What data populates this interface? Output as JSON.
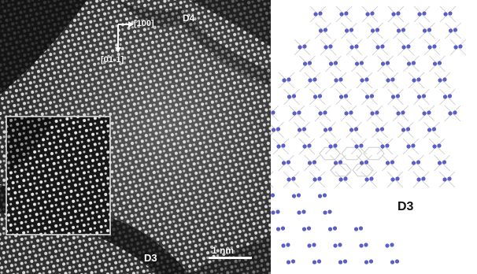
{
  "micrograph": {
    "direction_labels": {
      "dir_100": "[100]",
      "dir_01_1": "[01-1]"
    },
    "domain_labels": {
      "top_right": "D4",
      "bottom": "D3"
    },
    "scale_bar": {
      "label": "1 nm"
    }
  },
  "model": {
    "domain_label": "D3"
  },
  "colors": {
    "atom": "#5a5ec8",
    "bond": "#c8c8c8",
    "inset_border": "#e0e0e0",
    "labels": "#ffffff"
  }
}
